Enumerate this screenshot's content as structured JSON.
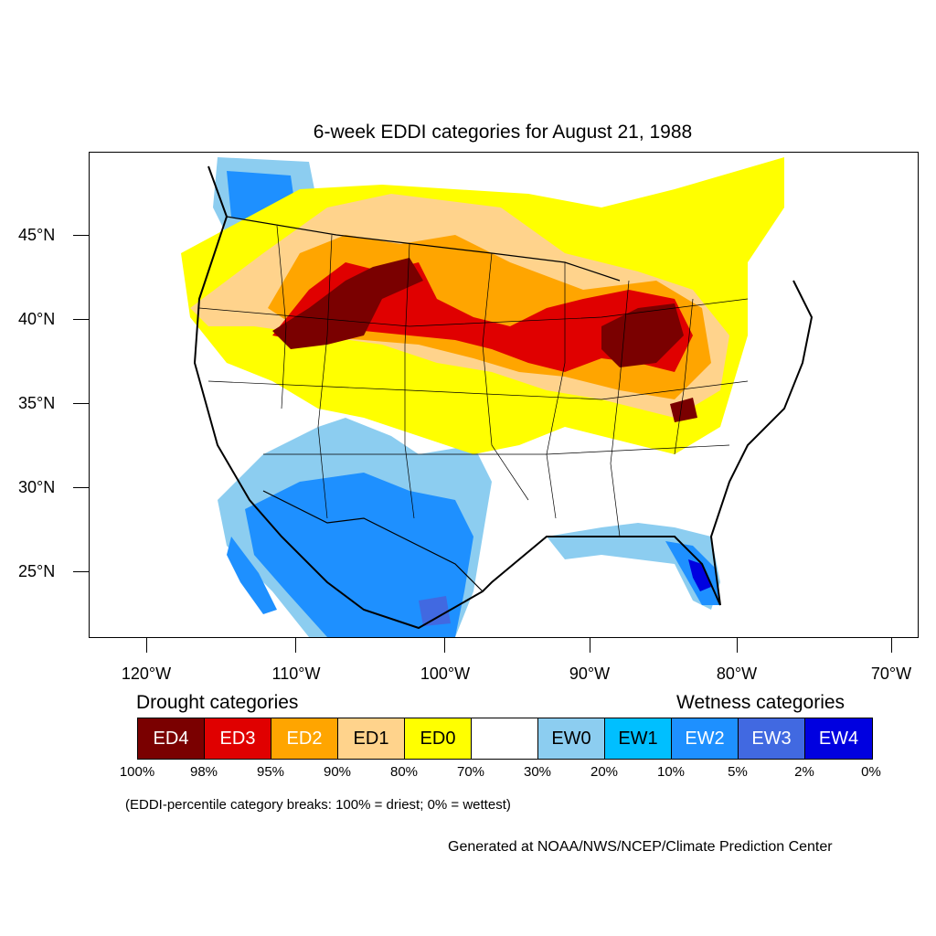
{
  "title": "6-week EDDI categories for August 21, 1988",
  "map": {
    "lat_labels": [
      "45°N",
      "40°N",
      "35°N",
      "30°N",
      "25°N"
    ],
    "lon_labels": [
      "120°W",
      "110°W",
      "100°W",
      "90°W",
      "80°W",
      "70°W"
    ]
  },
  "legend": {
    "drought_heading": "Drought categories",
    "wetness_heading": "Wetness categories",
    "categories": [
      {
        "label": "ED4",
        "color": "#7a0000",
        "text_color": "#ffffff"
      },
      {
        "label": "ED3",
        "color": "#e00000",
        "text_color": "#ffffff"
      },
      {
        "label": "ED2",
        "color": "#ffa500",
        "text_color": "#ffffff"
      },
      {
        "label": "ED1",
        "color": "#ffd38c",
        "text_color": "#000000"
      },
      {
        "label": "ED0",
        "color": "#ffff00",
        "text_color": "#000000"
      },
      {
        "label": "",
        "color": "#ffffff",
        "text_color": "#000000"
      },
      {
        "label": "EW0",
        "color": "#8ccdf0",
        "text_color": "#000000"
      },
      {
        "label": "EW1",
        "color": "#00bfff",
        "text_color": "#000000"
      },
      {
        "label": "EW2",
        "color": "#1e90ff",
        "text_color": "#ffffff"
      },
      {
        "label": "EW3",
        "color": "#4169e1",
        "text_color": "#ffffff"
      },
      {
        "label": "EW4",
        "color": "#0000e0",
        "text_color": "#ffffff"
      }
    ],
    "percentiles": [
      "100%",
      "98%",
      "95%",
      "90%",
      "80%",
      "70%",
      "30%",
      "20%",
      "10%",
      "5%",
      "2%",
      "0%"
    ]
  },
  "note": "(EDDI-percentile category breaks: 100% = driest; 0% = wettest)",
  "credit": "Generated at NOAA/NWS/NCEP/Climate Prediction Center"
}
